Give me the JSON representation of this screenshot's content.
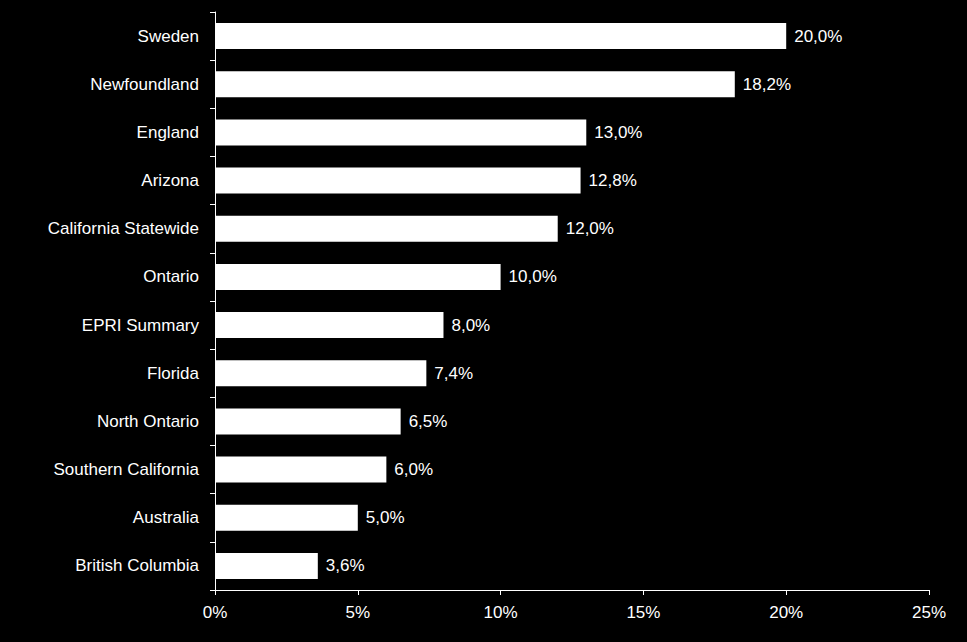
{
  "chart_data": {
    "type": "bar",
    "orientation": "horizontal",
    "categories": [
      "Sweden",
      "Newfoundland",
      "England",
      "Arizona",
      "California Statewide",
      "Ontario",
      "EPRI Summary",
      "Florida",
      "North Ontario",
      "Southern California",
      "Australia",
      "British Columbia"
    ],
    "values": [
      20.0,
      18.2,
      13.0,
      12.8,
      12.0,
      10.0,
      8.0,
      7.4,
      6.5,
      6.0,
      5.0,
      3.6
    ],
    "value_labels": [
      "20,0%",
      "18,2%",
      "13,0%",
      "12,8%",
      "12,0%",
      "10,0%",
      "8,0%",
      "7,4%",
      "6,5%",
      "6,0%",
      "5,0%",
      "3,6%"
    ],
    "color": "#ffffff",
    "xlim": [
      0,
      25
    ],
    "xticks": [
      {
        "value": 0,
        "label": "0%"
      },
      {
        "value": 5,
        "label": "5%"
      },
      {
        "value": 10,
        "label": "10%"
      },
      {
        "value": 15,
        "label": "15%"
      },
      {
        "value": 20,
        "label": "20%"
      },
      {
        "value": 25,
        "label": "25%"
      }
    ],
    "grid": false,
    "data_labels": true
  }
}
